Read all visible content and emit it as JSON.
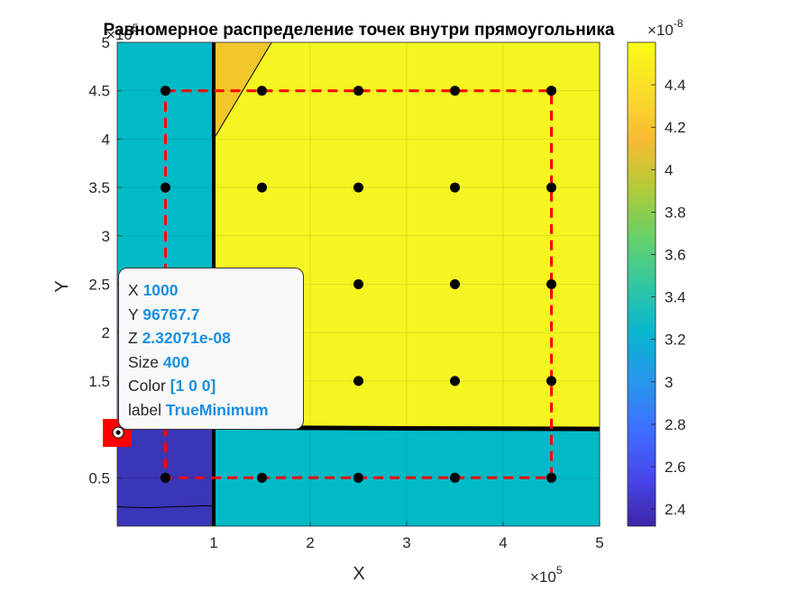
{
  "chart_data": {
    "type": "contourf",
    "title": "Равномерное распределение точек внутри прямоугольника",
    "xlabel": "X",
    "ylabel": "Y",
    "xlim": [
      0,
      500000
    ],
    "ylim": [
      0,
      500000
    ],
    "x_exponent": "×10",
    "x_exponent_power": "5",
    "y_exponent": "×10",
    "y_exponent_power": "5",
    "x_ticks": [
      100000,
      200000,
      300000,
      400000,
      500000
    ],
    "x_tick_labels": [
      "1",
      "2",
      "3",
      "4",
      "5"
    ],
    "y_ticks": [
      50000,
      100000,
      150000,
      200000,
      250000,
      300000,
      350000,
      400000,
      450000,
      500000
    ],
    "y_tick_labels": [
      "0.5",
      "1",
      "1.5",
      "2",
      "2.5",
      "3",
      "3.5",
      "4",
      "4.5",
      "5"
    ],
    "colorbar": {
      "range": [
        2.32e-08,
        4.6e-08
      ],
      "ticks": [
        2.4e-08,
        2.6e-08,
        2.8e-08,
        3e-08,
        3.2e-08,
        3.4e-08,
        3.6e-08,
        3.8e-08,
        4e-08,
        4.2e-08,
        4.4e-08
      ],
      "tick_labels": [
        "2.4",
        "2.6",
        "2.8",
        "3",
        "3.2",
        "3.4",
        "3.6",
        "3.8",
        "4",
        "4.2",
        "4.4"
      ],
      "exponent": "×10",
      "exponent_power": "-8",
      "colormap": "parula"
    },
    "regions": [
      {
        "color": "#00bac5",
        "polygon": [
          [
            0,
            100000
          ],
          [
            100000,
            100000
          ],
          [
            100000,
            500000
          ],
          [
            0,
            500000
          ]
        ]
      },
      {
        "color": "#3a36b8",
        "polygon": [
          [
            0,
            0
          ],
          [
            100000,
            0
          ],
          [
            100000,
            100000
          ],
          [
            0,
            100000
          ]
        ]
      },
      {
        "color": "#00bac5",
        "polygon": [
          [
            100000,
            0
          ],
          [
            500000,
            0
          ],
          [
            500000,
            100000
          ],
          [
            100000,
            100000
          ]
        ]
      },
      {
        "color": "#f5f522",
        "polygon": [
          [
            100000,
            100000
          ],
          [
            500000,
            100000
          ],
          [
            500000,
            500000
          ],
          [
            100000,
            500000
          ]
        ]
      },
      {
        "color": "#f2c72a",
        "polygon": [
          [
            100000,
            400000
          ],
          [
            160000,
            500000
          ],
          [
            100000,
            500000
          ]
        ]
      }
    ],
    "boundaries": [
      {
        "color": "#000000",
        "points": [
          [
            100000,
            0
          ],
          [
            100000,
            500000
          ]
        ],
        "width": 4
      },
      {
        "color": "#000000",
        "points": [
          [
            100000,
            102000
          ],
          [
            300000,
            101000
          ],
          [
            500000,
            100500
          ]
        ],
        "width": 5
      },
      {
        "color": "#000000",
        "points": [
          [
            100000,
            400000
          ],
          [
            160000,
            500000
          ]
        ],
        "width": 1
      },
      {
        "color": "#000000",
        "points": [
          [
            0,
            20000
          ],
          [
            30000,
            19000
          ],
          [
            60000,
            20000
          ],
          [
            90000,
            21000
          ],
          [
            100000,
            21000
          ]
        ],
        "width": 1
      }
    ],
    "rectangle": {
      "x": [
        50000,
        450000
      ],
      "y": [
        50000,
        450000
      ],
      "color": "#ff0000",
      "style": "dashed"
    },
    "points": {
      "color": "#000000",
      "values": [
        [
          50000,
          50000
        ],
        [
          150000,
          50000
        ],
        [
          250000,
          50000
        ],
        [
          350000,
          50000
        ],
        [
          450000,
          50000
        ],
        [
          250000,
          150000
        ],
        [
          350000,
          150000
        ],
        [
          450000,
          150000
        ],
        [
          250000,
          250000
        ],
        [
          350000,
          250000
        ],
        [
          450000,
          250000
        ],
        [
          50000,
          350000
        ],
        [
          150000,
          350000
        ],
        [
          250000,
          350000
        ],
        [
          350000,
          350000
        ],
        [
          450000,
          350000
        ],
        [
          50000,
          450000
        ],
        [
          150000,
          450000
        ],
        [
          250000,
          450000
        ],
        [
          350000,
          450000
        ],
        [
          450000,
          450000
        ]
      ]
    },
    "true_minimum": {
      "x": 1000,
      "y": 96767.7,
      "color": "#ff0000"
    }
  },
  "datatip": {
    "rows": [
      {
        "key": "X",
        "value": "1000"
      },
      {
        "key": "Y",
        "value": "96767.7"
      },
      {
        "key": "Z",
        "value": "2.32071e-08"
      },
      {
        "key": "Size",
        "value": "400"
      },
      {
        "key": "Color",
        "value": "[1 0 0]"
      },
      {
        "key": "label",
        "value": "TrueMinimum"
      }
    ]
  }
}
